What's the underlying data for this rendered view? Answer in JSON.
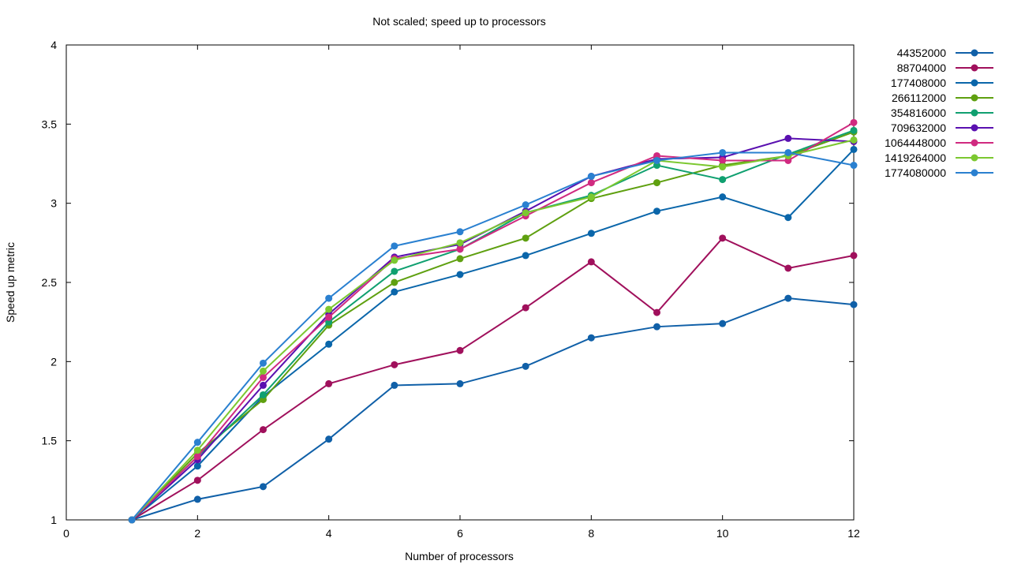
{
  "chart_data": {
    "type": "line",
    "title": "Not scaled; speed up to processors",
    "xlabel": "Number of processors",
    "ylabel": "Speed up metric",
    "xlim": [
      0,
      12
    ],
    "ylim": [
      1,
      4
    ],
    "xticks": [
      0,
      2,
      4,
      6,
      8,
      10,
      12
    ],
    "yticks": [
      1,
      1.5,
      2,
      2.5,
      3,
      3.5,
      4
    ],
    "grid": false,
    "legend_position": "top-right-outside",
    "x": [
      1,
      2,
      3,
      4,
      5,
      6,
      7,
      8,
      9,
      10,
      11,
      12
    ],
    "series": [
      {
        "name": "44352000",
        "color": "#1060a8",
        "values": [
          1.0,
          1.13,
          1.21,
          1.51,
          1.85,
          1.86,
          1.97,
          2.15,
          2.22,
          2.24,
          2.4,
          2.36
        ]
      },
      {
        "name": "88704000",
        "color": "#a0105c",
        "values": [
          1.0,
          1.25,
          1.57,
          1.86,
          1.98,
          2.07,
          2.34,
          2.63,
          2.31,
          2.78,
          2.59,
          2.67
        ]
      },
      {
        "name": "177408000",
        "color": "#0a66aa",
        "values": [
          1.0,
          1.34,
          1.78,
          2.11,
          2.44,
          2.55,
          2.67,
          2.81,
          2.95,
          3.04,
          2.91,
          3.34
        ]
      },
      {
        "name": "266112000",
        "color": "#5fa010",
        "values": [
          1.0,
          1.42,
          1.76,
          2.23,
          2.5,
          2.65,
          2.78,
          3.03,
          3.13,
          3.24,
          3.3,
          3.45
        ]
      },
      {
        "name": "354816000",
        "color": "#10a070",
        "values": [
          1.0,
          1.4,
          1.79,
          2.25,
          2.57,
          2.71,
          2.94,
          3.05,
          3.24,
          3.15,
          3.31,
          3.46
        ]
      },
      {
        "name": "709632000",
        "color": "#5a10b0",
        "values": [
          1.0,
          1.38,
          1.85,
          2.3,
          2.66,
          2.74,
          2.95,
          3.17,
          3.28,
          3.29,
          3.41,
          3.39
        ]
      },
      {
        "name": "1064448000",
        "color": "#d02a80",
        "values": [
          1.0,
          1.4,
          1.9,
          2.28,
          2.65,
          2.71,
          2.92,
          3.13,
          3.3,
          3.27,
          3.27,
          3.51
        ]
      },
      {
        "name": "1419264000",
        "color": "#7cc830",
        "values": [
          1.0,
          1.44,
          1.94,
          2.33,
          2.64,
          2.75,
          2.94,
          3.04,
          3.27,
          3.23,
          3.3,
          3.4
        ]
      },
      {
        "name": "1774080000",
        "color": "#2a80d0",
        "values": [
          1.0,
          1.49,
          1.99,
          2.4,
          2.73,
          2.82,
          2.99,
          3.17,
          3.27,
          3.32,
          3.32,
          3.24
        ]
      }
    ]
  }
}
